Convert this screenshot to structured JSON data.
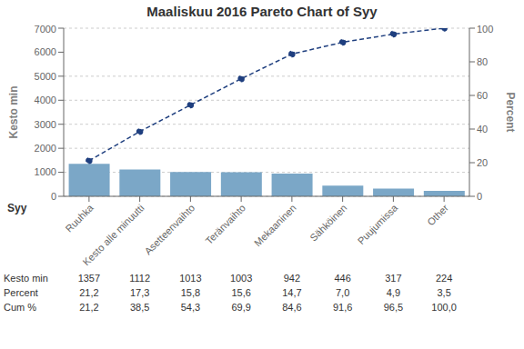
{
  "chart_data": {
    "type": "bar",
    "title": "Maaliskuu 2016 Pareto Chart of Syy",
    "x_label": "Syy",
    "y_label": "Kesto min",
    "y2_label": "Percent",
    "categories": [
      "Ruuhka",
      "Kesto alle minuutti",
      "Asetteenvaihto",
      "Teränvaihto",
      "Mekaaninen",
      "Sähköinen",
      "Puujumissa",
      "Other"
    ],
    "series": [
      {
        "type": "bar",
        "color": "#7BA7C7",
        "values": [
          1357,
          1112,
          1013,
          1003,
          942,
          446,
          317,
          224
        ]
      },
      {
        "type": "line",
        "axis": "y2",
        "color": "#1F3F7F",
        "line_style": "dashed",
        "marker": "circle",
        "values": [
          21.2,
          38.5,
          54.3,
          69.9,
          84.6,
          91.6,
          96.5,
          100.0
        ]
      }
    ],
    "ylim": [
      0,
      7000
    ],
    "yticks": [
      0,
      1000,
      2000,
      3000,
      4000,
      5000,
      6000,
      7000
    ],
    "y2lim": [
      0,
      100
    ],
    "y2ticks": [
      0,
      20,
      40,
      60,
      80,
      100
    ],
    "grid": true,
    "table": {
      "row_labels": [
        "Kesto min",
        "Percent",
        "Cum %"
      ],
      "cells": [
        [
          "1357",
          "1112",
          "1013",
          "1003",
          "942",
          "446",
          "317",
          "224"
        ],
        [
          "21,2",
          "17,3",
          "15,8",
          "15,6",
          "14,7",
          "7,0",
          "4,9",
          "3,5"
        ],
        [
          "21,2",
          "38,5",
          "54,3",
          "69,9",
          "84,6",
          "91,6",
          "96,5",
          "100,0"
        ]
      ]
    }
  }
}
